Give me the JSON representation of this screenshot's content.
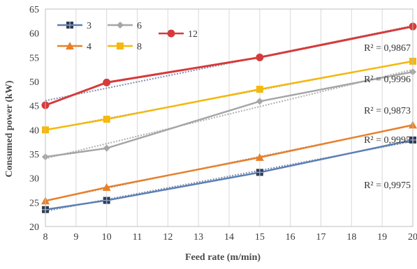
{
  "chart_data": {
    "type": "line",
    "xlabel": "Feed rate (m/min)",
    "ylabel": "Consumed power (kW)",
    "xlim": [
      8,
      20
    ],
    "ylim": [
      20,
      65
    ],
    "x_ticks": [
      8,
      9,
      10,
      11,
      12,
      13,
      14,
      15,
      16,
      17,
      18,
      19,
      20
    ],
    "y_ticks": [
      20,
      25,
      30,
      35,
      40,
      45,
      50,
      55,
      60,
      65
    ],
    "grid": "vertical",
    "legend_position": "top-left",
    "series": [
      {
        "name": "3",
        "color": "#5b7fb4",
        "marker": "square-cross",
        "x": [
          8,
          10,
          15,
          20
        ],
        "y": [
          23.5,
          25.4,
          31.2,
          37.9
        ],
        "r2_label": "R² = 0,9975"
      },
      {
        "name": "4",
        "color": "#e8802a",
        "marker": "triangle",
        "x": [
          8,
          10,
          15,
          20
        ],
        "y": [
          25.3,
          28.1,
          34.3,
          41.0
        ],
        "r2_label": "R² = 0,9995"
      },
      {
        "name": "6",
        "color": "#a6a6a6",
        "marker": "diamond",
        "x": [
          8,
          10,
          15,
          20
        ],
        "y": [
          34.4,
          36.2,
          45.9,
          52.0
        ],
        "r2_label": "R² = 0,9873"
      },
      {
        "name": "8",
        "color": "#f5b80c",
        "marker": "square",
        "x": [
          8,
          10,
          15,
          20
        ],
        "y": [
          40.0,
          42.2,
          48.4,
          54.2
        ],
        "r2_label": "R² = 0,9996"
      },
      {
        "name": "12",
        "color": "#d63a3a",
        "marker": "circle",
        "x": [
          8,
          10,
          15,
          20
        ],
        "y": [
          45.1,
          49.8,
          55.0,
          61.4
        ],
        "r2_label": "R² = 0,9867"
      }
    ]
  }
}
